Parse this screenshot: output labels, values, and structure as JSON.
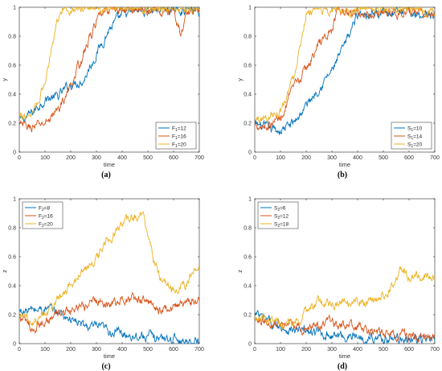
{
  "colors": {
    "series_1": "#0072BD",
    "series_2": "#D95319",
    "series_3": "#EDB120"
  },
  "chart_data": [
    {
      "panel": "(a)",
      "type": "line",
      "xlabel": "time",
      "ylabel": "y",
      "xlim": [
        0,
        700
      ],
      "ylim": [
        0,
        1
      ],
      "xticks": [
        "0",
        "100",
        "200",
        "300",
        "400",
        "500",
        "600",
        "700"
      ],
      "yticks": [
        "0",
        "0.2",
        "0.4",
        "0.6",
        "0.8",
        "1"
      ],
      "grid": false,
      "legend_position": "bottom-right",
      "series": [
        {
          "label_main": "F",
          "label_sub": "1",
          "label_rest": "=12",
          "x": [
            0,
            50,
            100,
            150,
            200,
            250,
            300,
            350,
            400,
            450,
            500,
            550,
            600,
            650,
            700
          ],
          "y": [
            0.21,
            0.27,
            0.37,
            0.38,
            0.47,
            0.5,
            0.68,
            0.85,
            0.94,
            0.97,
            0.98,
            0.99,
            0.98,
            0.99,
            0.97
          ]
        },
        {
          "label_main": "F",
          "label_sub": "1",
          "label_rest": "=16",
          "x": [
            0,
            50,
            100,
            150,
            200,
            250,
            300,
            350,
            400,
            450,
            500,
            550,
            600,
            630,
            650,
            700
          ],
          "y": [
            0.18,
            0.17,
            0.2,
            0.29,
            0.45,
            0.68,
            0.9,
            0.99,
            0.98,
            0.99,
            0.98,
            0.97,
            0.98,
            0.8,
            0.97,
            0.96
          ]
        },
        {
          "label_main": "F",
          "label_sub": "1",
          "label_rest": "=20",
          "x": [
            0,
            50,
            100,
            130,
            160,
            200,
            300,
            400,
            500,
            600,
            700
          ],
          "y": [
            0.22,
            0.28,
            0.47,
            0.78,
            1.0,
            0.99,
            1.0,
            0.99,
            1.0,
            0.99,
            1.0
          ]
        }
      ]
    },
    {
      "panel": "(b)",
      "type": "line",
      "xlabel": "time",
      "ylabel": "y",
      "xlim": [
        0,
        700
      ],
      "ylim": [
        0,
        1
      ],
      "xticks": [
        "0",
        "100",
        "200",
        "300",
        "400",
        "500",
        "600",
        "700"
      ],
      "yticks": [
        "0",
        "0.2",
        "0.4",
        "0.6",
        "0.8",
        "1"
      ],
      "grid": false,
      "legend_position": "bottom-right",
      "series": [
        {
          "label_main": "S",
          "label_sub": "1",
          "label_rest": "=10",
          "x": [
            0,
            50,
            100,
            150,
            200,
            250,
            300,
            350,
            400,
            500,
            600,
            700
          ],
          "y": [
            0.19,
            0.16,
            0.15,
            0.2,
            0.32,
            0.45,
            0.56,
            0.73,
            0.96,
            0.97,
            0.96,
            0.95
          ]
        },
        {
          "label_main": "S",
          "label_sub": "1",
          "label_rest": "=14",
          "x": [
            0,
            50,
            100,
            150,
            200,
            250,
            300,
            320,
            400,
            500,
            600,
            700
          ],
          "y": [
            0.2,
            0.18,
            0.24,
            0.43,
            0.57,
            0.75,
            0.84,
            0.97,
            0.95,
            0.97,
            0.96,
            0.94
          ]
        },
        {
          "label_main": "S",
          "label_sub": "1",
          "label_rest": "=20",
          "x": [
            0,
            50,
            100,
            150,
            200,
            250,
            300,
            400,
            500,
            600,
            700
          ],
          "y": [
            0.22,
            0.24,
            0.3,
            0.51,
            0.97,
            0.99,
            0.98,
            0.99,
            0.98,
            0.99,
            0.98
          ]
        }
      ]
    },
    {
      "panel": "(c)",
      "type": "line",
      "xlabel": "time",
      "ylabel": "z",
      "xlim": [
        0,
        700
      ],
      "ylim": [
        0,
        1
      ],
      "xticks": [
        "0",
        "100",
        "200",
        "300",
        "400",
        "500",
        "600",
        "700"
      ],
      "yticks": [
        "0",
        "0.2",
        "0.4",
        "0.6",
        "0.8",
        "1"
      ],
      "grid": false,
      "legend_position": "top-left",
      "series": [
        {
          "label_main": "F",
          "label_sub": "2",
          "label_rest": "=8",
          "x": [
            0,
            50,
            100,
            150,
            200,
            250,
            300,
            350,
            400,
            450,
            500,
            550,
            600,
            650,
            700
          ],
          "y": [
            0.22,
            0.23,
            0.24,
            0.22,
            0.17,
            0.12,
            0.11,
            0.09,
            0.07,
            0.06,
            0.05,
            0.04,
            0.03,
            0.02,
            0.02
          ]
        },
        {
          "label_main": "F",
          "label_sub": "2",
          "label_rest": "=16",
          "x": [
            0,
            50,
            100,
            150,
            200,
            250,
            300,
            350,
            400,
            450,
            500,
            550,
            600,
            650,
            700
          ],
          "y": [
            0.18,
            0.11,
            0.15,
            0.2,
            0.22,
            0.25,
            0.3,
            0.28,
            0.3,
            0.31,
            0.29,
            0.24,
            0.26,
            0.27,
            0.31
          ]
        },
        {
          "label_main": "F",
          "label_sub": "2",
          "label_rest": "=20",
          "x": [
            0,
            50,
            100,
            150,
            200,
            250,
            300,
            350,
            400,
            450,
            480,
            500,
            550,
            600,
            650,
            700
          ],
          "y": [
            0.2,
            0.15,
            0.22,
            0.29,
            0.4,
            0.51,
            0.58,
            0.73,
            0.83,
            0.88,
            0.9,
            0.71,
            0.45,
            0.38,
            0.42,
            0.52
          ]
        }
      ]
    },
    {
      "panel": "(d)",
      "type": "line",
      "xlabel": "time",
      "ylabel": "z",
      "xlim": [
        0,
        700
      ],
      "ylim": [
        0,
        1
      ],
      "xticks": [
        "0",
        "100",
        "200",
        "300",
        "400",
        "500",
        "600",
        "700"
      ],
      "yticks": [
        "0",
        "0.2",
        "0.4",
        "0.6",
        "0.8",
        "1"
      ],
      "grid": false,
      "legend_position": "top-left",
      "series": [
        {
          "label_main": "S",
          "label_sub": "2",
          "label_rest": "=6",
          "x": [
            0,
            50,
            100,
            150,
            200,
            250,
            300,
            350,
            400,
            450,
            500,
            550,
            600,
            650,
            700
          ],
          "y": [
            0.2,
            0.15,
            0.12,
            0.09,
            0.08,
            0.07,
            0.06,
            0.05,
            0.05,
            0.04,
            0.04,
            0.03,
            0.03,
            0.03,
            0.02
          ]
        },
        {
          "label_main": "S",
          "label_sub": "2",
          "label_rest": "=12",
          "x": [
            0,
            50,
            100,
            150,
            200,
            250,
            300,
            350,
            400,
            450,
            500,
            550,
            600,
            650,
            700
          ],
          "y": [
            0.19,
            0.16,
            0.13,
            0.11,
            0.1,
            0.13,
            0.14,
            0.12,
            0.1,
            0.09,
            0.07,
            0.06,
            0.05,
            0.04,
            0.03
          ]
        },
        {
          "label_main": "S",
          "label_sub": "2",
          "label_rest": "=18",
          "x": [
            0,
            50,
            100,
            150,
            200,
            250,
            300,
            350,
            400,
            450,
            500,
            550,
            570,
            600,
            650,
            700
          ],
          "y": [
            0.19,
            0.17,
            0.14,
            0.14,
            0.22,
            0.29,
            0.28,
            0.3,
            0.27,
            0.29,
            0.32,
            0.44,
            0.55,
            0.45,
            0.47,
            0.49
          ]
        }
      ]
    }
  ]
}
